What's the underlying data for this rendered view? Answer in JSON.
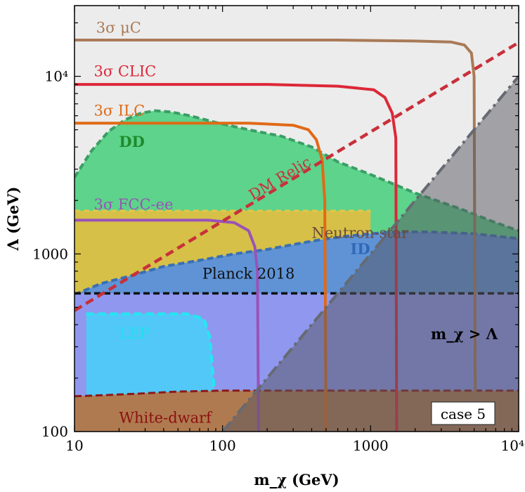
{
  "chart_data": {
    "type": "area",
    "x_scale": "log",
    "y_scale": "log",
    "xlim": [
      10,
      10000
    ],
    "ylim": [
      100,
      25000
    ],
    "xlabel": "m_χ (GeV)",
    "ylabel": "Λ (GeV)",
    "x_ticks": [
      {
        "value": 10,
        "label": "10"
      },
      {
        "value": 100,
        "label": "100"
      },
      {
        "value": 1000,
        "label": "1000"
      },
      {
        "value": 10000,
        "label": "10⁴"
      }
    ],
    "y_ticks": [
      {
        "value": 100,
        "label": "100"
      },
      {
        "value": 1000,
        "label": "1000"
      },
      {
        "value": 10000,
        "label": "10⁴"
      }
    ],
    "annotation": "case 5",
    "colors": {
      "background": "#ececec",
      "dd_fill": "#5dd38b",
      "dd_edge": "#3a9e66",
      "ns_fill": "#d6c047",
      "ns_edge": "#e0c74a",
      "id_fill": "#5f93d6",
      "id_edge": "#3a6fb2",
      "planck_fill": "#8f98ee",
      "lep_fill": "#52c8f8",
      "lep_edge": "#22e8f2",
      "wd_fill": "#b07a50",
      "wd_edge": "#8a1a1a",
      "excluded_fill": "rgba(85,85,95,0.5)",
      "excluded_edge": "#666a72",
      "muc": "#a97a57",
      "clic": "#dc2838",
      "ilc": "#e06a16",
      "fcc": "#9a52b8",
      "relic": "#c8303a",
      "planck_line": "#111111"
    },
    "regions": [
      {
        "name": "DD",
        "label": "DD",
        "label_pos": [
          20,
          4000
        ],
        "label_color": "#1f8a2c",
        "label_bold": true,
        "boundary": [
          [
            10,
            2700
          ],
          [
            13,
            3800
          ],
          [
            17,
            4900
          ],
          [
            22,
            5700
          ],
          [
            28,
            6200
          ],
          [
            35,
            6400
          ],
          [
            45,
            6300
          ],
          [
            60,
            6000
          ],
          [
            90,
            5500
          ],
          [
            150,
            5000
          ],
          [
            250,
            4600
          ],
          [
            400,
            4000
          ],
          [
            600,
            3300
          ],
          [
            1000,
            2800
          ],
          [
            2000,
            2200
          ],
          [
            4000,
            1800
          ],
          [
            7000,
            1500
          ],
          [
            10000,
            1350
          ]
        ]
      },
      {
        "name": "Neutron-star",
        "label": "Neutron-star",
        "label_pos": [
          400,
          1230
        ],
        "label_color": "#6b4a3a",
        "boundary": [
          [
            10,
            1750
          ],
          [
            1000,
            1750
          ]
        ]
      },
      {
        "name": "ID",
        "label": "ID",
        "label_pos": [
          730,
          1000
        ],
        "label_color": "#2f68b8",
        "label_bold": true,
        "boundary": [
          [
            10,
            590
          ],
          [
            15,
            680
          ],
          [
            25,
            760
          ],
          [
            40,
            850
          ],
          [
            70,
            920
          ],
          [
            120,
            1000
          ],
          [
            200,
            1060
          ],
          [
            300,
            1130
          ],
          [
            450,
            1200
          ],
          [
            700,
            1260
          ],
          [
            1000,
            1300
          ],
          [
            1500,
            1330
          ],
          [
            2500,
            1330
          ],
          [
            5000,
            1300
          ],
          [
            10000,
            1220
          ]
        ]
      },
      {
        "name": "Planck 2018",
        "label": "Planck 2018",
        "label_pos": [
          73,
          725
        ],
        "label_color": "#111111",
        "boundary": [
          [
            10,
            600
          ],
          [
            10000,
            600
          ]
        ]
      },
      {
        "name": "LEP",
        "label": "LEP",
        "label_pos": [
          20,
          335
        ],
        "label_color": "#20e0ee",
        "boundary": [
          [
            12,
            160
          ],
          [
            12,
            460
          ],
          [
            58,
            460
          ],
          [
            75,
            430
          ],
          [
            82,
            340
          ],
          [
            88,
            170
          ],
          [
            95,
            160
          ]
        ]
      },
      {
        "name": "White-dwarf",
        "label": "White-dwarf",
        "label_pos": [
          20,
          112
        ],
        "label_color": "#8b1010",
        "boundary": [
          [
            10,
            158
          ],
          [
            15,
            160
          ],
          [
            25,
            163
          ],
          [
            50,
            168
          ],
          [
            100,
            170
          ],
          [
            500,
            170
          ],
          [
            2000,
            170
          ],
          [
            5000,
            170
          ],
          [
            10000,
            170
          ]
        ]
      },
      {
        "name": "excluded",
        "label": "m_χ > Λ",
        "label_pos": [
          2550,
          332
        ],
        "label_color": "#000000",
        "label_bold": true,
        "boundary": [
          [
            100,
            100
          ],
          [
            10000,
            10000
          ]
        ]
      }
    ],
    "series": [
      {
        "name": "3σ μC",
        "label_pos": [
          14,
          17600
        ],
        "points": [
          [
            10,
            16000
          ],
          [
            600,
            16000
          ],
          [
            2000,
            15800
          ],
          [
            3500,
            15600
          ],
          [
            4300,
            15000
          ],
          [
            4800,
            13500
          ],
          [
            5000,
            10000
          ],
          [
            5100,
            100
          ]
        ]
      },
      {
        "name": "3σ CLIC",
        "label_pos": [
          13.5,
          10000
        ],
        "points": [
          [
            10,
            9000
          ],
          [
            200,
            9000
          ],
          [
            600,
            8800
          ],
          [
            1050,
            8400
          ],
          [
            1250,
            7600
          ],
          [
            1400,
            6200
          ],
          [
            1480,
            4500
          ],
          [
            1500,
            100
          ]
        ]
      },
      {
        "name": "3σ ILC",
        "label_pos": [
          13.5,
          6000
        ],
        "points": [
          [
            10,
            5450
          ],
          [
            150,
            5450
          ],
          [
            300,
            5300
          ],
          [
            380,
            5000
          ],
          [
            430,
            4400
          ],
          [
            470,
            3400
          ],
          [
            490,
            2000
          ],
          [
            500,
            100
          ]
        ]
      },
      {
        "name": "3σ FCC-ee",
        "label_pos": [
          13.5,
          1780
        ],
        "points": [
          [
            10,
            1550
          ],
          [
            80,
            1550
          ],
          [
            120,
            1500
          ],
          [
            150,
            1350
          ],
          [
            165,
            1100
          ],
          [
            172,
            800
          ],
          [
            175,
            100
          ]
        ]
      },
      {
        "name": "DM Relic",
        "label_pos": [
          160,
          2000
        ],
        "points": [
          [
            10,
            480
          ],
          [
            10000,
            15500
          ]
        ]
      }
    ]
  }
}
